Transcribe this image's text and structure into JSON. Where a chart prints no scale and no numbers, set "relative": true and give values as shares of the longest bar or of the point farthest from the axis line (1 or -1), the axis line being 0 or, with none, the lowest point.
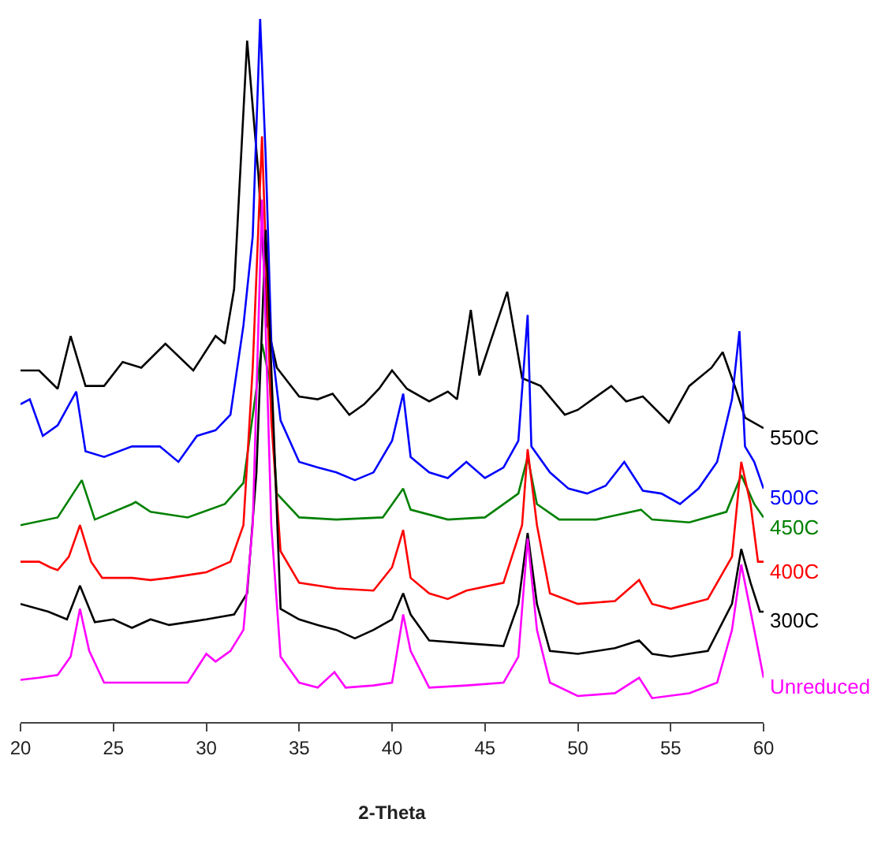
{
  "chart_data": {
    "type": "line",
    "relative": true,
    "xlabel": "2-Theta",
    "xlim": [
      20,
      60
    ],
    "xticks": [
      20,
      25,
      30,
      35,
      40,
      45,
      50,
      55,
      60
    ],
    "grid": false,
    "legend": false,
    "marker": "none",
    "line_style": "solid",
    "series": [
      {
        "name": "550C",
        "color": "#000000",
        "x": [
          20,
          21,
          22,
          22.7,
          23.5,
          24.5,
          25.5,
          26.5,
          27.8,
          29.3,
          30.5,
          31,
          31.5,
          32.2,
          32.8,
          33.3,
          33.8,
          35,
          36,
          36.8,
          37.7,
          38.5,
          39.3,
          40,
          40.8,
          42,
          43,
          43.5,
          44.24,
          44.7,
          45.3,
          46.2,
          47,
          48,
          49.3,
          50,
          51.8,
          52.6,
          53.5,
          54.9,
          56,
          57.2,
          57.8,
          58.5,
          59,
          60
        ],
        "values": [
          0.5,
          0.5,
          0.474,
          0.549,
          0.478,
          0.478,
          0.512,
          0.504,
          0.538,
          0.5,
          0.549,
          0.538,
          0.616,
          0.969,
          0.781,
          0.564,
          0.504,
          0.463,
          0.459,
          0.467,
          0.437,
          0.452,
          0.474,
          0.5,
          0.474,
          0.456,
          0.47,
          0.459,
          0.586,
          0.493,
          0.541,
          0.612,
          0.489,
          0.478,
          0.437,
          0.444,
          0.478,
          0.456,
          0.463,
          0.426,
          0.478,
          0.504,
          0.526,
          0.474,
          0.433,
          0.418
        ]
      },
      {
        "name": "500C",
        "color": "#0000ff",
        "x": [
          20,
          20.5,
          21.2,
          22,
          23,
          23.5,
          24.5,
          26,
          27.5,
          28.5,
          29.5,
          30.5,
          31.3,
          32,
          32.5,
          32.9,
          33.2,
          33.5,
          34,
          35,
          36,
          37,
          38,
          39,
          40,
          40.6,
          41,
          42,
          43,
          44,
          45,
          46,
          46.8,
          47.3,
          47.5,
          48.5,
          49.5,
          50.5,
          51.5,
          52.5,
          53.5,
          54.5,
          55.5,
          56.5,
          57.5,
          58.3,
          58.7,
          59,
          59.5,
          60
        ],
        "values": [
          0.452,
          0.459,
          0.407,
          0.422,
          0.47,
          0.385,
          0.377,
          0.392,
          0.392,
          0.37,
          0.407,
          0.415,
          0.437,
          0.564,
          0.691,
          1,
          0.803,
          0.541,
          0.429,
          0.37,
          0.362,
          0.355,
          0.344,
          0.355,
          0.4,
          0.467,
          0.377,
          0.355,
          0.347,
          0.37,
          0.347,
          0.362,
          0.4,
          0.579,
          0.392,
          0.355,
          0.332,
          0.325,
          0.336,
          0.37,
          0.329,
          0.325,
          0.31,
          0.332,
          0.37,
          0.459,
          0.556,
          0.392,
          0.37,
          0.332
        ]
      },
      {
        "name": "450C",
        "color": "#008000",
        "x": [
          20,
          22,
          23.3,
          24,
          26,
          26.2,
          27,
          29,
          31,
          32,
          32.7,
          33,
          33.4,
          33.8,
          35,
          37,
          39.5,
          40.6,
          41,
          43,
          45,
          46.8,
          47.3,
          47.8,
          49,
          51,
          53.4,
          54,
          56,
          58,
          58.8,
          59.5,
          60
        ],
        "values": [
          0.28,
          0.291,
          0.344,
          0.288,
          0.31,
          0.313,
          0.299,
          0.291,
          0.31,
          0.34,
          0.474,
          0.538,
          0.489,
          0.325,
          0.291,
          0.288,
          0.291,
          0.332,
          0.302,
          0.288,
          0.291,
          0.325,
          0.377,
          0.31,
          0.288,
          0.288,
          0.302,
          0.288,
          0.284,
          0.299,
          0.351,
          0.31,
          0.291
        ]
      },
      {
        "name": "400C",
        "color": "#ff0000",
        "x": [
          20,
          21,
          21.6,
          22,
          22.6,
          23.2,
          23.8,
          24.4,
          26,
          27,
          28,
          30,
          31.3,
          32,
          32.5,
          33,
          33.5,
          34,
          35,
          37,
          39,
          40,
          40.6,
          41,
          42,
          43,
          44,
          46,
          47,
          47.3,
          47.8,
          48.5,
          50,
          52,
          53.3,
          54,
          55,
          57,
          58.3,
          58.8,
          59.3,
          59.7,
          60
        ],
        "values": [
          0.228,
          0.228,
          0.22,
          0.216,
          0.235,
          0.28,
          0.228,
          0.205,
          0.205,
          0.202,
          0.205,
          0.213,
          0.228,
          0.28,
          0.504,
          0.833,
          0.429,
          0.243,
          0.198,
          0.19,
          0.187,
          0.22,
          0.273,
          0.205,
          0.183,
          0.175,
          0.187,
          0.198,
          0.28,
          0.388,
          0.28,
          0.183,
          0.168,
          0.172,
          0.202,
          0.168,
          0.161,
          0.175,
          0.235,
          0.37,
          0.31,
          0.228,
          0.228
        ]
      },
      {
        "name": "300C",
        "color": "#000000",
        "x": [
          20,
          21.5,
          22.5,
          23.2,
          24,
          25,
          26,
          27,
          28,
          30,
          31.5,
          32.2,
          32.7,
          33.2,
          33.5,
          34,
          35,
          36,
          37,
          38,
          39,
          40,
          40.6,
          41,
          42,
          44,
          46,
          46.8,
          47.3,
          47.8,
          48.5,
          50,
          52,
          53.3,
          54,
          55,
          57,
          58.3,
          58.8,
          59.3,
          59.8,
          60
        ],
        "values": [
          0.168,
          0.157,
          0.146,
          0.194,
          0.142,
          0.146,
          0.134,
          0.146,
          0.138,
          0.146,
          0.153,
          0.183,
          0.355,
          0.7,
          0.504,
          0.161,
          0.146,
          0.138,
          0.131,
          0.119,
          0.131,
          0.146,
          0.183,
          0.153,
          0.116,
          0.112,
          0.108,
          0.168,
          0.269,
          0.168,
          0.101,
          0.097,
          0.105,
          0.116,
          0.097,
          0.093,
          0.101,
          0.168,
          0.246,
          0.198,
          0.157,
          0.157
        ]
      },
      {
        "name": "Unreduced",
        "color": "#ff00ff",
        "x": [
          20,
          21,
          22,
          22.7,
          23.2,
          23.7,
          24.5,
          26,
          28,
          29,
          30,
          30.5,
          31.3,
          32,
          32.5,
          33,
          33.5,
          34,
          35,
          36,
          36.9,
          37.5,
          39,
          40,
          40.6,
          41,
          42,
          44,
          46,
          46.8,
          47.3,
          47.8,
          48.5,
          50,
          52,
          53.3,
          54,
          56,
          57.5,
          58.3,
          58.8,
          59.5,
          60
        ],
        "values": [
          0.06,
          0.063,
          0.067,
          0.093,
          0.161,
          0.101,
          0.056,
          0.056,
          0.056,
          0.056,
          0.097,
          0.086,
          0.101,
          0.131,
          0.28,
          0.743,
          0.28,
          0.093,
          0.056,
          0.049,
          0.071,
          0.049,
          0.052,
          0.056,
          0.153,
          0.101,
          0.049,
          0.052,
          0.056,
          0.093,
          0.261,
          0.131,
          0.056,
          0.037,
          0.041,
          0.063,
          0.034,
          0.041,
          0.056,
          0.131,
          0.224,
          0.131,
          0.063
        ]
      }
    ]
  }
}
